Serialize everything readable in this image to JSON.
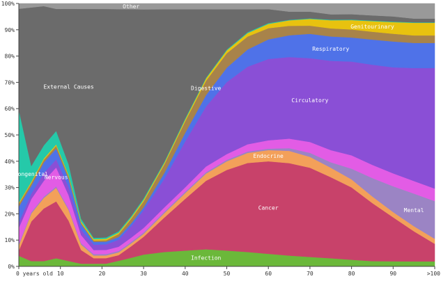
{
  "chart_data": {
    "type": "area",
    "stacked": true,
    "normalized": true,
    "title": "",
    "xlabel": "",
    "ylabel": "",
    "xlim": [
      0,
      100
    ],
    "ylim": [
      0,
      1
    ],
    "x": [
      0,
      3,
      6,
      9,
      12,
      15,
      18,
      21,
      24,
      27,
      30,
      35,
      40,
      45,
      50,
      55,
      60,
      65,
      70,
      75,
      80,
      85,
      90,
      95,
      100
    ],
    "x_ticks": [
      {
        "value": 0,
        "label": "0 years old"
      },
      {
        "value": 10,
        "label": "10"
      },
      {
        "value": 20,
        "label": "20"
      },
      {
        "value": 30,
        "label": "30"
      },
      {
        "value": 40,
        "label": "40"
      },
      {
        "value": 50,
        "label": "50"
      },
      {
        "value": 60,
        "label": "60"
      },
      {
        "value": 70,
        "label": "70"
      },
      {
        "value": 80,
        "label": "80"
      },
      {
        "value": 90,
        "label": "90"
      },
      {
        "value": 100,
        "label": ">100"
      }
    ],
    "y_ticks": [
      {
        "value": 0,
        "label": "0%"
      },
      {
        "value": 0.1,
        "label": "10%"
      },
      {
        "value": 0.2,
        "label": "20%"
      },
      {
        "value": 0.3,
        "label": "30%"
      },
      {
        "value": 0.4,
        "label": "40%"
      },
      {
        "value": 0.5,
        "label": "50%"
      },
      {
        "value": 0.6,
        "label": "60%"
      },
      {
        "value": 0.7,
        "label": "70%"
      },
      {
        "value": 0.8,
        "label": "80%"
      },
      {
        "value": 0.9,
        "label": "90%"
      },
      {
        "value": 1.0,
        "label": "100%"
      }
    ],
    "series": [
      {
        "name": "Infection",
        "color": "#6bb83a",
        "label_at": 43,
        "values": [
          0.04,
          0.02,
          0.02,
          0.03,
          0.02,
          0.01,
          0.01,
          0.01,
          0.02,
          0.03,
          0.04,
          0.05,
          0.055,
          0.06,
          0.055,
          0.05,
          0.045,
          0.04,
          0.035,
          0.03,
          0.025,
          0.02,
          0.02,
          0.02,
          0.02
        ]
      },
      {
        "name": "Cancer",
        "color": "#c8426a",
        "label_at": 60,
        "values": [
          0.02,
          0.15,
          0.2,
          0.21,
          0.15,
          0.05,
          0.02,
          0.02,
          0.02,
          0.04,
          0.06,
          0.12,
          0.18,
          0.24,
          0.28,
          0.31,
          0.33,
          0.34,
          0.33,
          0.3,
          0.27,
          0.22,
          0.17,
          0.12,
          0.07
        ]
      },
      {
        "name": "Endocrine",
        "color": "#f3a05a",
        "label_at": 58,
        "values": [
          0.02,
          0.03,
          0.04,
          0.05,
          0.04,
          0.02,
          0.01,
          0.01,
          0.01,
          0.01,
          0.01,
          0.015,
          0.02,
          0.025,
          0.03,
          0.035,
          0.04,
          0.045,
          0.04,
          0.035,
          0.03,
          0.025,
          0.02,
          0.02,
          0.02
        ]
      },
      {
        "name": "Mental",
        "color": "#9b84c4",
        "label_at": 93,
        "values": [
          0.005,
          0.005,
          0.005,
          0.005,
          0.005,
          0.005,
          0.005,
          0.005,
          0.005,
          0.005,
          0.005,
          0.005,
          0.005,
          0.005,
          0.005,
          0.005,
          0.005,
          0.01,
          0.015,
          0.02,
          0.04,
          0.07,
          0.1,
          0.13,
          0.15
        ]
      },
      {
        "name": "Nervous",
        "color": "#e25ce5",
        "label_at": 9,
        "values": [
          0.06,
          0.05,
          0.06,
          0.07,
          0.05,
          0.03,
          0.015,
          0.015,
          0.015,
          0.015,
          0.015,
          0.015,
          0.015,
          0.02,
          0.02,
          0.025,
          0.03,
          0.035,
          0.04,
          0.045,
          0.05,
          0.05,
          0.05,
          0.05,
          0.05
        ]
      },
      {
        "name": "Circulatory",
        "color": "#8a4fd6",
        "label_at": 70,
        "values": [
          0.02,
          0.02,
          0.03,
          0.03,
          0.03,
          0.02,
          0.02,
          0.02,
          0.025,
          0.04,
          0.06,
          0.1,
          0.16,
          0.21,
          0.25,
          0.27,
          0.29,
          0.3,
          0.31,
          0.33,
          0.35,
          0.38,
          0.41,
          0.45,
          0.48
        ]
      },
      {
        "name": "Respiratory",
        "color": "#4f72e8",
        "label_at": 75,
        "values": [
          0.06,
          0.03,
          0.04,
          0.04,
          0.03,
          0.02,
          0.01,
          0.01,
          0.01,
          0.01,
          0.01,
          0.02,
          0.03,
          0.04,
          0.05,
          0.06,
          0.07,
          0.08,
          0.09,
          0.09,
          0.09,
          0.095,
          0.1,
          0.1,
          0.1
        ]
      },
      {
        "name": "Digestive",
        "color": "#a8834a",
        "label_at": 43,
        "values": [
          0.01,
          0.01,
          0.01,
          0.01,
          0.01,
          0.005,
          0.005,
          0.005,
          0.01,
          0.015,
          0.02,
          0.03,
          0.04,
          0.05,
          0.05,
          0.045,
          0.04,
          0.035,
          0.03,
          0.03,
          0.03,
          0.03,
          0.03,
          0.03,
          0.03
        ]
      },
      {
        "name": "Genitourinary",
        "color": "#e8c20f",
        "label_at": 85,
        "values": [
          0.005,
          0.005,
          0.005,
          0.005,
          0.005,
          0.005,
          0.005,
          0.005,
          0.005,
          0.005,
          0.005,
          0.005,
          0.006,
          0.008,
          0.01,
          0.012,
          0.015,
          0.02,
          0.025,
          0.03,
          0.035,
          0.04,
          0.045,
          0.05,
          0.05
        ]
      },
      {
        "name": "Congenital",
        "color": "#25c9a9",
        "label_at": 3,
        "values": [
          0.35,
          0.06,
          0.05,
          0.05,
          0.04,
          0.01,
          0.005,
          0.005,
          0.005,
          0.005,
          0.005,
          0.004,
          0.004,
          0.003,
          0.003,
          0.003,
          0.003,
          0.002,
          0.002,
          0.002,
          0.002,
          0.002,
          0.002,
          0.002,
          0.002
        ]
      },
      {
        "name": "External Causes",
        "color": "#6b6b6b",
        "label_at": 12,
        "values": [
          0.38,
          0.6,
          0.53,
          0.45,
          0.58,
          0.77,
          0.84,
          0.83,
          0.79,
          0.72,
          0.64,
          0.53,
          0.38,
          0.24,
          0.14,
          0.08,
          0.05,
          0.03,
          0.025,
          0.02,
          0.02,
          0.02,
          0.02,
          0.015,
          0.015
        ]
      },
      {
        "name": "Other",
        "color": "#999999",
        "label_at": 26,
        "values": [
          0.02,
          0.015,
          0.01,
          0.02,
          0.02,
          0.02,
          0.02,
          0.02,
          0.02,
          0.02,
          0.02,
          0.02,
          0.02,
          0.02,
          0.02,
          0.02,
          0.02,
          0.03,
          0.03,
          0.04,
          0.04,
          0.045,
          0.05,
          0.06,
          0.06
        ]
      }
    ]
  }
}
